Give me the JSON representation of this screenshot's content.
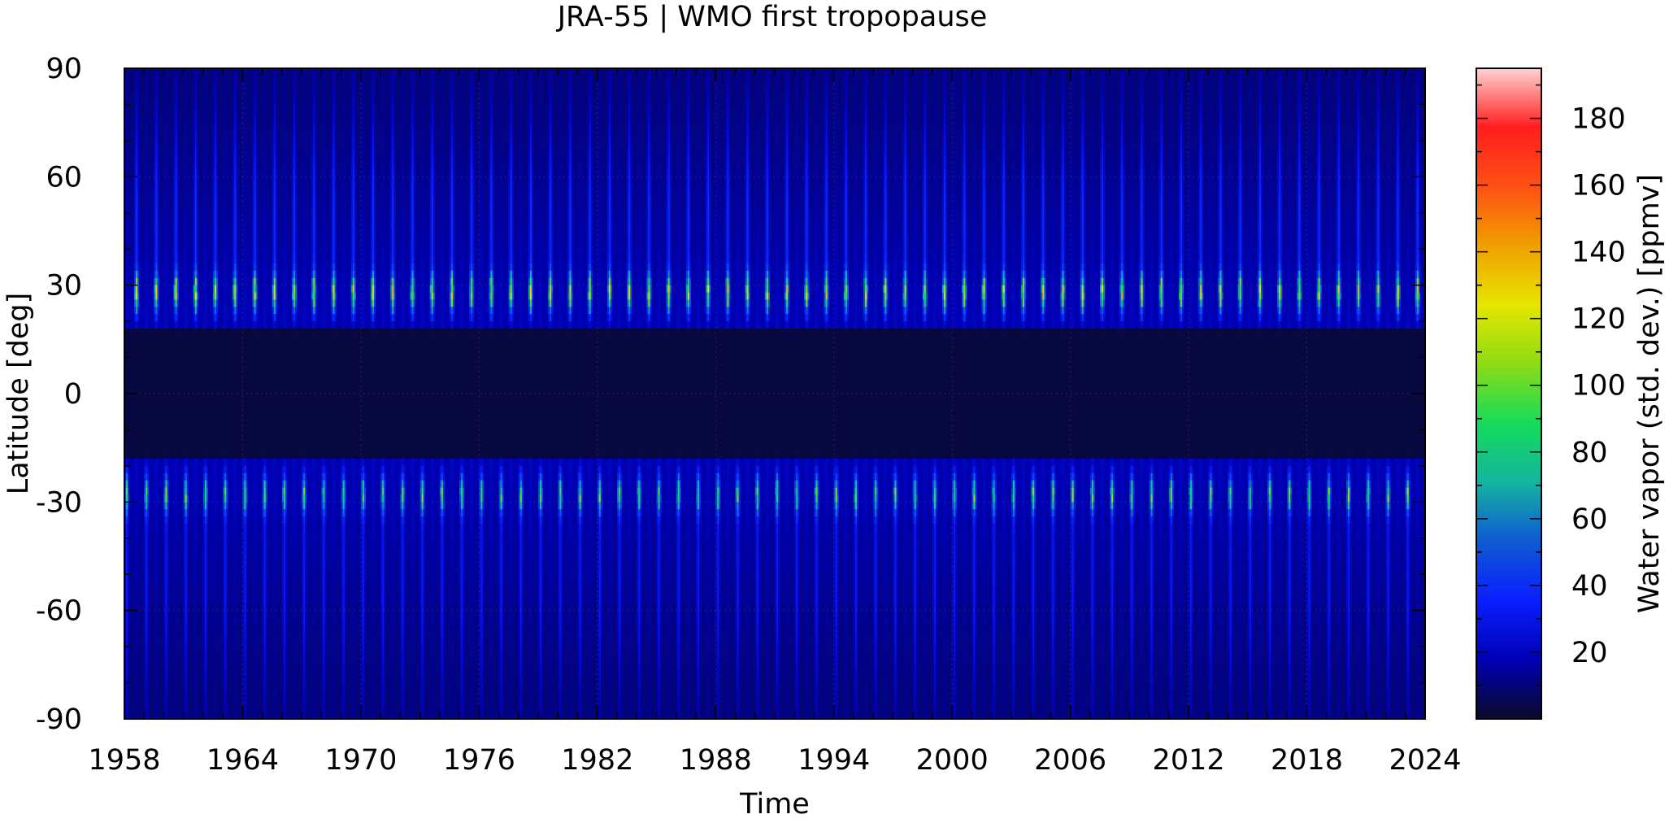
{
  "chart_data": {
    "type": "heatmap",
    "title": "JRA-55 | WMO first tropopause",
    "xlabel": "Time",
    "ylabel": "Latitude [deg]",
    "colorbar_label": "Water vapor (std. dev.) [ppmv]",
    "xlim": [
      1958,
      2024
    ],
    "ylim": [
      -90,
      90
    ],
    "x_ticks": [
      "1958",
      "1964",
      "1970",
      "1976",
      "1982",
      "1988",
      "1994",
      "2000",
      "2006",
      "2012",
      "2018",
      "2024"
    ],
    "y_ticks": [
      "90",
      "60",
      "30",
      "0",
      "-30",
      "-60",
      "-90"
    ],
    "colorbar_range": [
      0,
      195
    ],
    "colorbar_ticks": [
      "20",
      "40",
      "60",
      "80",
      "100",
      "120",
      "140",
      "160",
      "180"
    ],
    "colormap": [
      "#0a0a2a",
      "#0000b4",
      "#0a1eff",
      "#0f5ad2",
      "#14b4a0",
      "#14dc5a",
      "#8cdc14",
      "#e6e600",
      "#f0a000",
      "#ff5014",
      "#ff1e1e",
      "#ffd2d2"
    ],
    "grid": true,
    "pattern": {
      "seasonal_cycle_years": 1,
      "peak_latitudes_deg": [
        28,
        -28
      ],
      "typical_peak_value_ppmv": 110,
      "max_value_ppmv": 140,
      "tropical_band_deg": [
        -18,
        18
      ],
      "tropical_value_ppmv": 3
    }
  }
}
